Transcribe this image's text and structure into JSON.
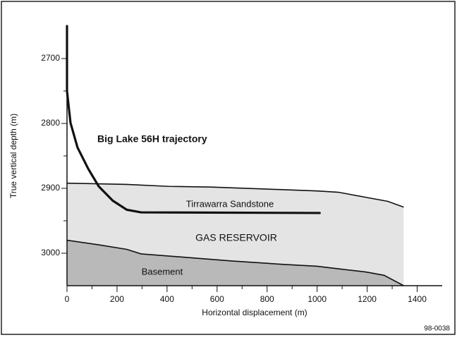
{
  "chart_data": {
    "type": "well-section",
    "xlabel": "Horizontal displacement (m)",
    "ylabel": "True vertical depth (m)",
    "xlim": [
      0,
      1500
    ],
    "ylim": [
      2650,
      3050
    ],
    "xticks": [
      0,
      200,
      400,
      600,
      800,
      1000,
      1200,
      1400
    ],
    "yticks": [
      2700,
      2800,
      2900,
      3000
    ],
    "xminorticks": [
      100,
      300,
      500,
      700,
      900,
      1100,
      1300
    ],
    "yminorticks": [
      2750,
      2850,
      2950
    ],
    "y_inverted": true,
    "series": [
      {
        "color": "#e4e4e4",
        "x": [
          0,
          239,
          408,
          577,
          859,
          1000,
          1085,
          1197,
          1282,
          1346
        ],
        "values": [
          2892,
          2894,
          2897,
          2898,
          2902,
          2904,
          2906,
          2914,
          2920,
          2929
        ]
      },
      {
        "color": "#b9b9b9",
        "x": [
          0,
          127,
          239,
          296,
          465,
          662,
          859,
          1000,
          1085,
          1197,
          1268,
          1346
        ],
        "values": [
          2980,
          2987,
          2994,
          3001,
          3006,
          3012,
          3017,
          3020,
          3024,
          3029,
          3034,
          3050
        ]
      },
      {
        "name": "Big Lake 56H trajectory",
        "color": "#111111",
        "x": [
          0,
          0,
          14,
          42,
          85,
          127,
          183,
          239,
          296,
          1010
        ],
        "values": [
          2650,
          2750,
          2799,
          2837,
          2870,
          2897,
          2919,
          2933,
          2937,
          2938
        ]
      }
    ],
    "annotations": [
      "Tirrawarra Sandstone",
      "GAS RESERVOIR",
      "Basement"
    ],
    "figure_id": "98-0038"
  }
}
